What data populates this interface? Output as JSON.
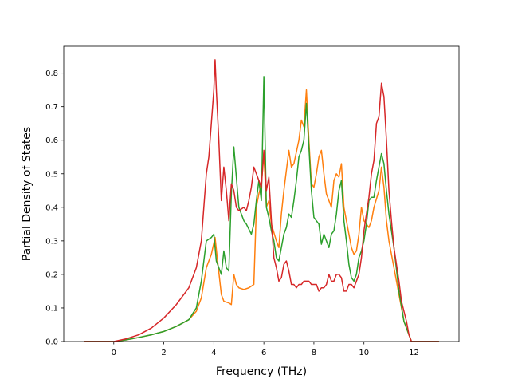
{
  "chart_data": {
    "type": "line",
    "title": "",
    "xlabel": "Frequency (THz)",
    "ylabel": "Partial Density of States",
    "xlim": [
      -2.0,
      13.8
    ],
    "ylim": [
      0.0,
      0.88
    ],
    "xticks": [
      0,
      2,
      4,
      6,
      8,
      10,
      12
    ],
    "yticks": [
      0.0,
      0.1,
      0.2,
      0.3,
      0.4,
      0.5,
      0.6,
      0.7,
      0.8
    ],
    "xtick_labels": [
      "0",
      "2",
      "4",
      "6",
      "8",
      "10",
      "12"
    ],
    "ytick_labels": [
      "0.0",
      "0.1",
      "0.2",
      "0.3",
      "0.4",
      "0.5",
      "0.6",
      "0.7",
      "0.8"
    ],
    "grid": false,
    "legend": "none",
    "series": [
      {
        "color": "#ff7f0e",
        "points": [
          [
            -1.2,
            0.0
          ],
          [
            0.0,
            0.0
          ],
          [
            0.5,
            0.005
          ],
          [
            1.0,
            0.012
          ],
          [
            1.5,
            0.02
          ],
          [
            2.0,
            0.03
          ],
          [
            2.5,
            0.045
          ],
          [
            3.0,
            0.065
          ],
          [
            3.3,
            0.09
          ],
          [
            3.5,
            0.13
          ],
          [
            3.7,
            0.22
          ],
          [
            3.9,
            0.26
          ],
          [
            4.05,
            0.31
          ],
          [
            4.15,
            0.24
          ],
          [
            4.3,
            0.14
          ],
          [
            4.4,
            0.12
          ],
          [
            4.6,
            0.115
          ],
          [
            4.7,
            0.11
          ],
          [
            4.8,
            0.2
          ],
          [
            4.9,
            0.17
          ],
          [
            5.0,
            0.16
          ],
          [
            5.2,
            0.155
          ],
          [
            5.4,
            0.16
          ],
          [
            5.6,
            0.17
          ],
          [
            5.7,
            0.4
          ],
          [
            5.8,
            0.44
          ],
          [
            5.9,
            0.47
          ],
          [
            6.0,
            0.56
          ],
          [
            6.1,
            0.4
          ],
          [
            6.2,
            0.42
          ],
          [
            6.3,
            0.35
          ],
          [
            6.5,
            0.3
          ],
          [
            6.6,
            0.28
          ],
          [
            6.7,
            0.38
          ],
          [
            6.8,
            0.45
          ],
          [
            7.0,
            0.57
          ],
          [
            7.1,
            0.52
          ],
          [
            7.2,
            0.53
          ],
          [
            7.4,
            0.6
          ],
          [
            7.5,
            0.66
          ],
          [
            7.6,
            0.64
          ],
          [
            7.7,
            0.75
          ],
          [
            7.8,
            0.6
          ],
          [
            7.9,
            0.47
          ],
          [
            8.0,
            0.46
          ],
          [
            8.1,
            0.5
          ],
          [
            8.2,
            0.55
          ],
          [
            8.3,
            0.57
          ],
          [
            8.4,
            0.5
          ],
          [
            8.5,
            0.44
          ],
          [
            8.7,
            0.4
          ],
          [
            8.8,
            0.48
          ],
          [
            8.9,
            0.5
          ],
          [
            9.0,
            0.49
          ],
          [
            9.1,
            0.53
          ],
          [
            9.2,
            0.4
          ],
          [
            9.4,
            0.32
          ],
          [
            9.5,
            0.28
          ],
          [
            9.6,
            0.26
          ],
          [
            9.7,
            0.27
          ],
          [
            9.8,
            0.32
          ],
          [
            9.9,
            0.4
          ],
          [
            10.0,
            0.36
          ],
          [
            10.1,
            0.35
          ],
          [
            10.2,
            0.34
          ],
          [
            10.3,
            0.36
          ],
          [
            10.4,
            0.4
          ],
          [
            10.6,
            0.45
          ],
          [
            10.7,
            0.52
          ],
          [
            10.8,
            0.46
          ],
          [
            10.9,
            0.36
          ],
          [
            11.0,
            0.3
          ],
          [
            11.2,
            0.22
          ],
          [
            11.4,
            0.14
          ],
          [
            11.6,
            0.06
          ],
          [
            11.8,
            0.02
          ],
          [
            11.9,
            0.0
          ],
          [
            13.0,
            0.0
          ]
        ]
      },
      {
        "color": "#2ca02c",
        "points": [
          [
            -1.2,
            0.0
          ],
          [
            0.0,
            0.0
          ],
          [
            0.5,
            0.005
          ],
          [
            1.0,
            0.012
          ],
          [
            1.5,
            0.02
          ],
          [
            2.0,
            0.03
          ],
          [
            2.5,
            0.045
          ],
          [
            3.0,
            0.065
          ],
          [
            3.3,
            0.1
          ],
          [
            3.5,
            0.18
          ],
          [
            3.7,
            0.3
          ],
          [
            3.9,
            0.31
          ],
          [
            4.0,
            0.32
          ],
          [
            4.1,
            0.24
          ],
          [
            4.3,
            0.2
          ],
          [
            4.4,
            0.27
          ],
          [
            4.5,
            0.22
          ],
          [
            4.6,
            0.21
          ],
          [
            4.7,
            0.44
          ],
          [
            4.8,
            0.58
          ],
          [
            5.0,
            0.4
          ],
          [
            5.2,
            0.36
          ],
          [
            5.3,
            0.35
          ],
          [
            5.5,
            0.32
          ],
          [
            5.6,
            0.35
          ],
          [
            5.7,
            0.42
          ],
          [
            5.8,
            0.48
          ],
          [
            5.9,
            0.42
          ],
          [
            6.0,
            0.79
          ],
          [
            6.1,
            0.4
          ],
          [
            6.2,
            0.37
          ],
          [
            6.3,
            0.33
          ],
          [
            6.4,
            0.3
          ],
          [
            6.5,
            0.25
          ],
          [
            6.6,
            0.24
          ],
          [
            6.7,
            0.28
          ],
          [
            6.8,
            0.32
          ],
          [
            6.9,
            0.34
          ],
          [
            7.0,
            0.38
          ],
          [
            7.1,
            0.37
          ],
          [
            7.2,
            0.42
          ],
          [
            7.3,
            0.48
          ],
          [
            7.4,
            0.55
          ],
          [
            7.5,
            0.57
          ],
          [
            7.6,
            0.6
          ],
          [
            7.7,
            0.71
          ],
          [
            7.8,
            0.58
          ],
          [
            7.9,
            0.45
          ],
          [
            8.0,
            0.37
          ],
          [
            8.1,
            0.36
          ],
          [
            8.2,
            0.35
          ],
          [
            8.3,
            0.29
          ],
          [
            8.4,
            0.32
          ],
          [
            8.5,
            0.3
          ],
          [
            8.6,
            0.28
          ],
          [
            8.7,
            0.32
          ],
          [
            8.8,
            0.33
          ],
          [
            8.9,
            0.38
          ],
          [
            9.0,
            0.45
          ],
          [
            9.1,
            0.48
          ],
          [
            9.2,
            0.36
          ],
          [
            9.3,
            0.3
          ],
          [
            9.4,
            0.23
          ],
          [
            9.5,
            0.19
          ],
          [
            9.6,
            0.18
          ],
          [
            9.7,
            0.2
          ],
          [
            9.8,
            0.25
          ],
          [
            9.9,
            0.27
          ],
          [
            10.0,
            0.3
          ],
          [
            10.1,
            0.35
          ],
          [
            10.2,
            0.42
          ],
          [
            10.3,
            0.43
          ],
          [
            10.4,
            0.43
          ],
          [
            10.5,
            0.48
          ],
          [
            10.6,
            0.52
          ],
          [
            10.7,
            0.56
          ],
          [
            10.8,
            0.53
          ],
          [
            10.9,
            0.45
          ],
          [
            11.0,
            0.38
          ],
          [
            11.2,
            0.28
          ],
          [
            11.4,
            0.15
          ],
          [
            11.6,
            0.06
          ],
          [
            11.8,
            0.02
          ],
          [
            11.9,
            0.0
          ],
          [
            13.0,
            0.0
          ]
        ]
      },
      {
        "color": "#d62728",
        "points": [
          [
            -1.2,
            0.0
          ],
          [
            0.0,
            0.0
          ],
          [
            0.5,
            0.008
          ],
          [
            1.0,
            0.02
          ],
          [
            1.5,
            0.04
          ],
          [
            2.0,
            0.07
          ],
          [
            2.5,
            0.11
          ],
          [
            3.0,
            0.16
          ],
          [
            3.3,
            0.22
          ],
          [
            3.5,
            0.3
          ],
          [
            3.6,
            0.4
          ],
          [
            3.7,
            0.5
          ],
          [
            3.8,
            0.55
          ],
          [
            3.9,
            0.65
          ],
          [
            4.0,
            0.75
          ],
          [
            4.05,
            0.84
          ],
          [
            4.1,
            0.75
          ],
          [
            4.2,
            0.6
          ],
          [
            4.3,
            0.42
          ],
          [
            4.4,
            0.52
          ],
          [
            4.5,
            0.45
          ],
          [
            4.6,
            0.36
          ],
          [
            4.7,
            0.47
          ],
          [
            4.8,
            0.45
          ],
          [
            4.9,
            0.4
          ],
          [
            5.0,
            0.39
          ],
          [
            5.2,
            0.4
          ],
          [
            5.3,
            0.39
          ],
          [
            5.4,
            0.42
          ],
          [
            5.5,
            0.46
          ],
          [
            5.6,
            0.52
          ],
          [
            5.7,
            0.5
          ],
          [
            5.8,
            0.48
          ],
          [
            5.9,
            0.46
          ],
          [
            6.0,
            0.57
          ],
          [
            6.1,
            0.45
          ],
          [
            6.2,
            0.49
          ],
          [
            6.3,
            0.36
          ],
          [
            6.4,
            0.25
          ],
          [
            6.5,
            0.22
          ],
          [
            6.6,
            0.18
          ],
          [
            6.7,
            0.19
          ],
          [
            6.8,
            0.23
          ],
          [
            6.9,
            0.24
          ],
          [
            7.0,
            0.21
          ],
          [
            7.1,
            0.17
          ],
          [
            7.2,
            0.17
          ],
          [
            7.3,
            0.16
          ],
          [
            7.4,
            0.17
          ],
          [
            7.5,
            0.17
          ],
          [
            7.6,
            0.18
          ],
          [
            7.7,
            0.18
          ],
          [
            7.8,
            0.18
          ],
          [
            7.9,
            0.17
          ],
          [
            8.0,
            0.17
          ],
          [
            8.1,
            0.17
          ],
          [
            8.2,
            0.15
          ],
          [
            8.3,
            0.16
          ],
          [
            8.4,
            0.16
          ],
          [
            8.5,
            0.17
          ],
          [
            8.6,
            0.2
          ],
          [
            8.7,
            0.18
          ],
          [
            8.8,
            0.18
          ],
          [
            8.9,
            0.2
          ],
          [
            9.0,
            0.2
          ],
          [
            9.1,
            0.19
          ],
          [
            9.2,
            0.15
          ],
          [
            9.3,
            0.15
          ],
          [
            9.4,
            0.17
          ],
          [
            9.5,
            0.17
          ],
          [
            9.6,
            0.16
          ],
          [
            9.7,
            0.18
          ],
          [
            9.8,
            0.2
          ],
          [
            9.9,
            0.25
          ],
          [
            10.0,
            0.33
          ],
          [
            10.1,
            0.38
          ],
          [
            10.2,
            0.43
          ],
          [
            10.3,
            0.5
          ],
          [
            10.4,
            0.54
          ],
          [
            10.5,
            0.65
          ],
          [
            10.6,
            0.67
          ],
          [
            10.7,
            0.77
          ],
          [
            10.8,
            0.73
          ],
          [
            10.9,
            0.6
          ],
          [
            11.0,
            0.45
          ],
          [
            11.1,
            0.36
          ],
          [
            11.2,
            0.28
          ],
          [
            11.4,
            0.18
          ],
          [
            11.5,
            0.12
          ],
          [
            11.6,
            0.09
          ],
          [
            11.7,
            0.06
          ],
          [
            11.8,
            0.02
          ],
          [
            11.9,
            0.0
          ],
          [
            13.0,
            0.0
          ]
        ]
      }
    ]
  }
}
